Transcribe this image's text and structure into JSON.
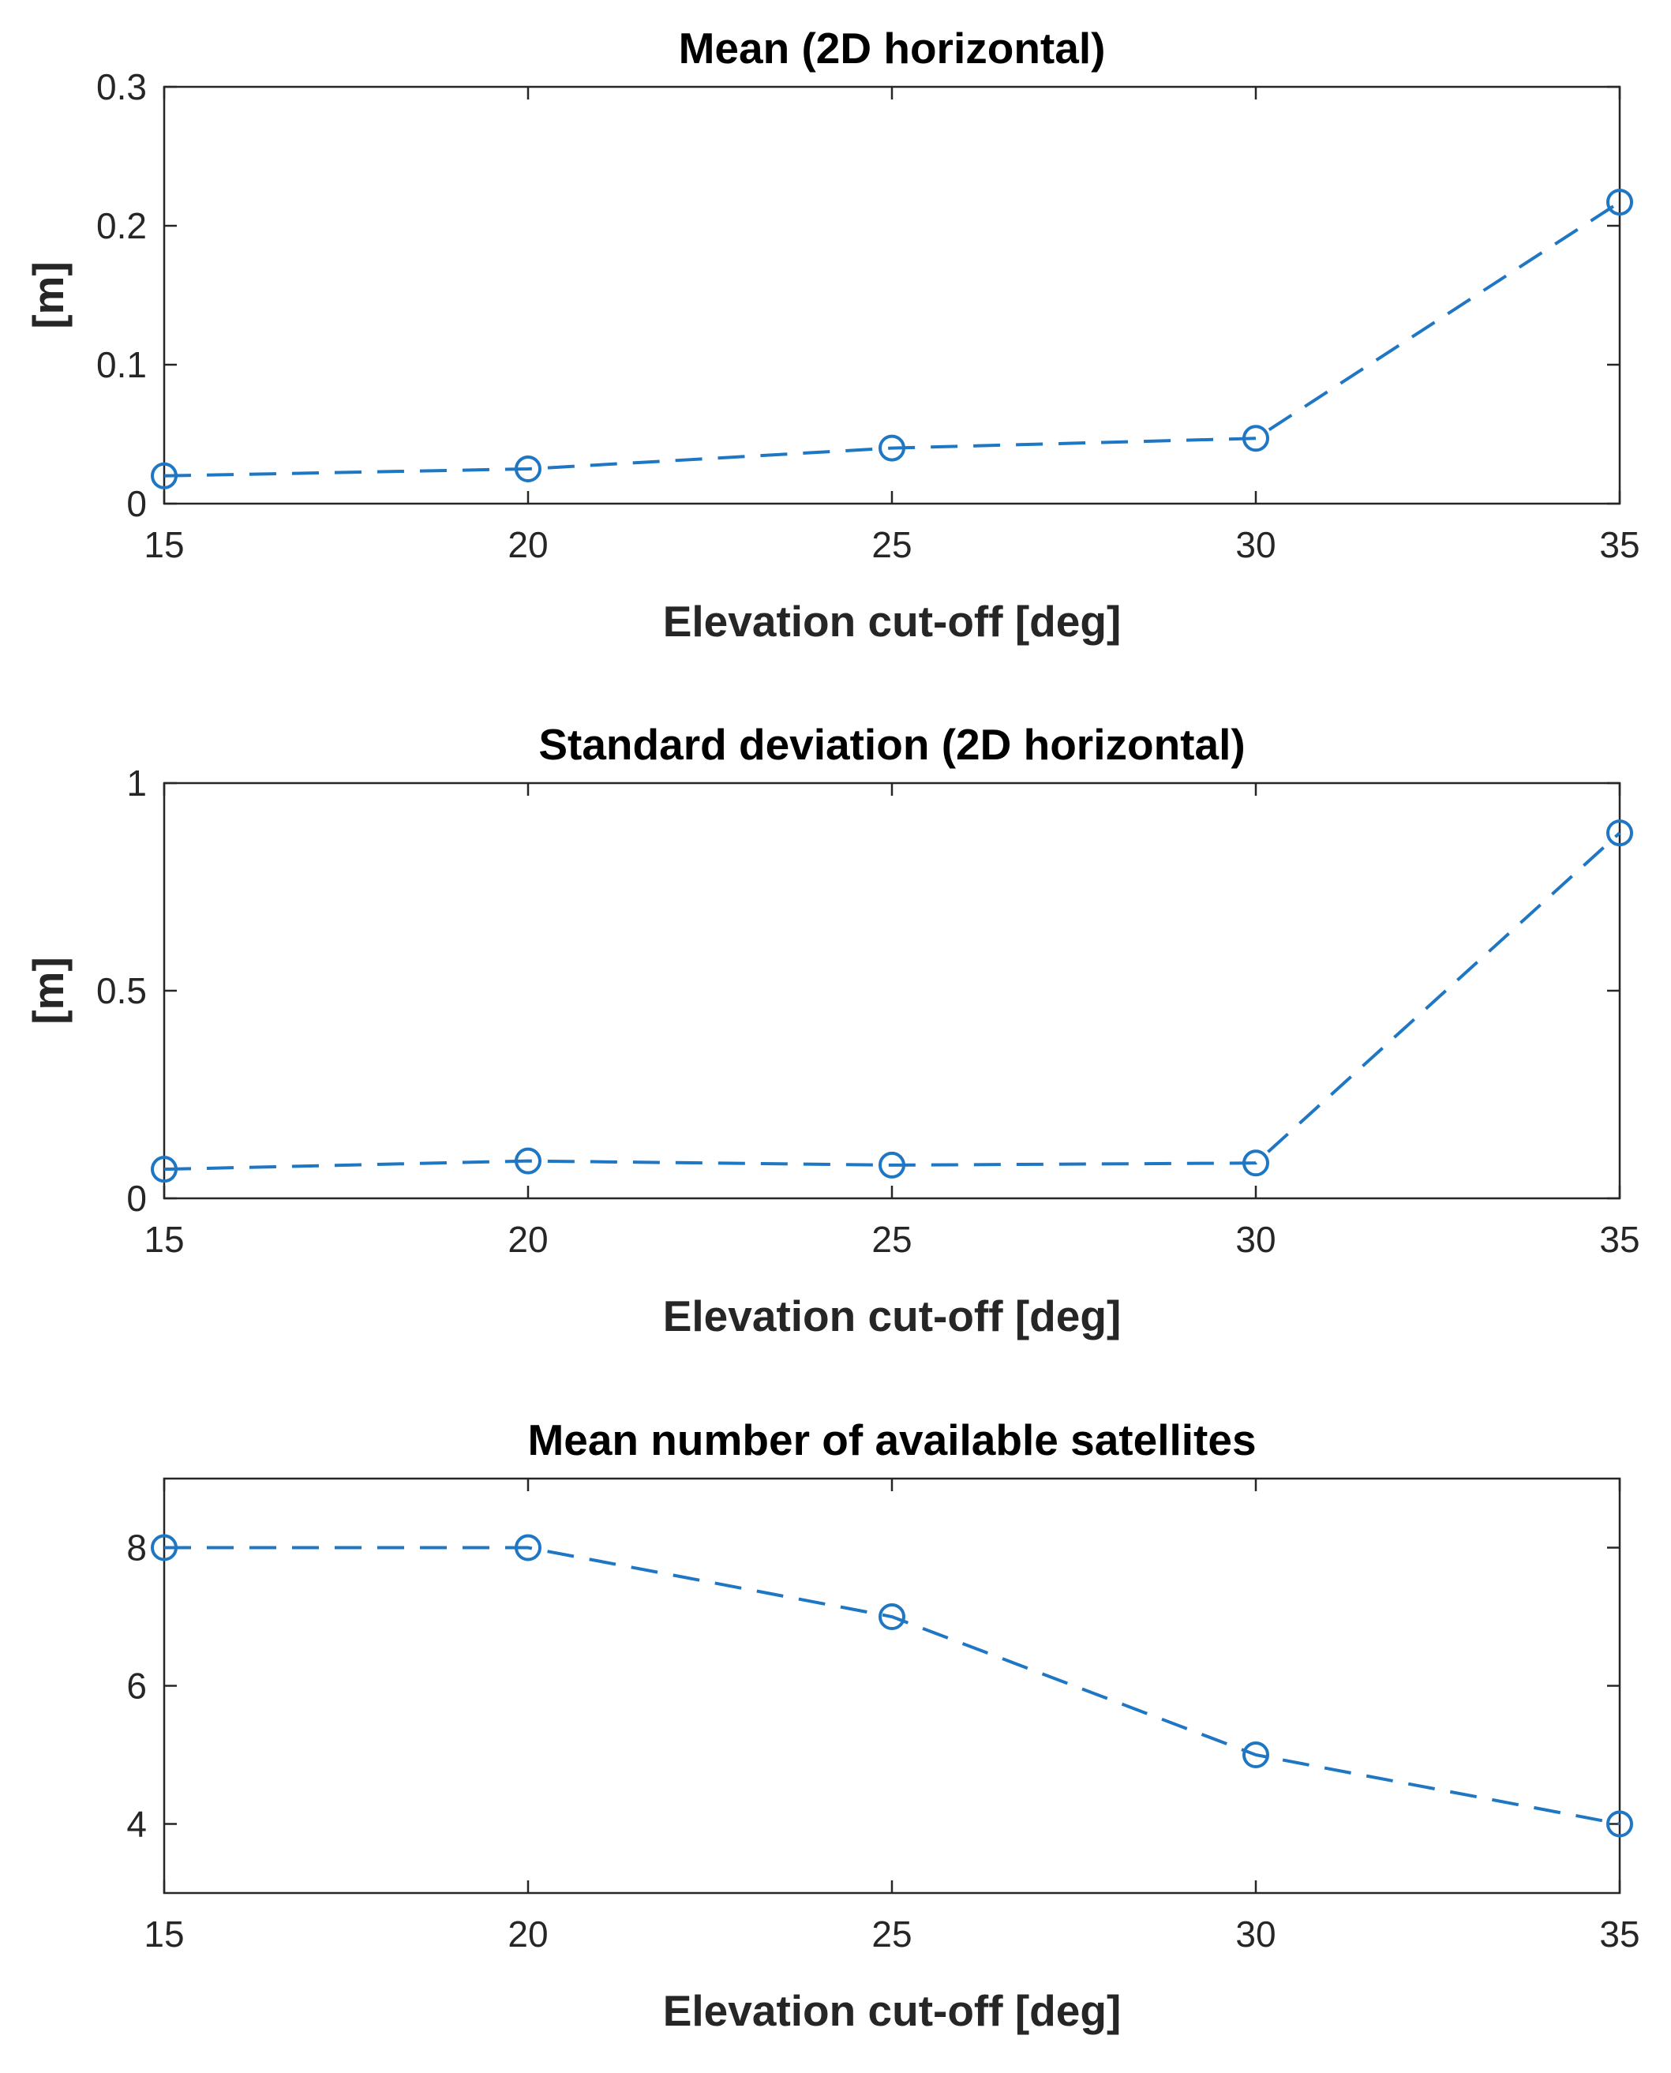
{
  "colors": {
    "series": "#1f77c4",
    "axes": "#262626",
    "grid": "#d4d4d4"
  },
  "chart_data": [
    {
      "type": "line",
      "title": "Mean (2D horizontal)",
      "xlabel": "Elevation cut-off [deg]",
      "ylabel": "[m]",
      "x": [
        15,
        20,
        25,
        30,
        35
      ],
      "series": [
        {
          "name": "Mean (2D horizontal)",
          "values": [
            0.02,
            0.025,
            0.04,
            0.047,
            0.217
          ],
          "line_style": "dashed",
          "marker": "circle"
        }
      ],
      "xlim": [
        15,
        35
      ],
      "ylim": [
        0,
        0.3
      ],
      "xticks": [
        15,
        20,
        25,
        30,
        35
      ],
      "xtick_labels": [
        "15",
        "20",
        "25",
        "30",
        "35"
      ],
      "yticks": [
        0,
        0.1,
        0.2,
        0.3
      ],
      "ytick_labels": [
        "0",
        "0.1",
        "0.2",
        "0.3"
      ],
      "grid": true
    },
    {
      "type": "line",
      "title": "Standard deviation (2D horizontal)",
      "xlabel": "Elevation cut-off [deg]",
      "ylabel": "[m]",
      "x": [
        15,
        20,
        25,
        30,
        35
      ],
      "series": [
        {
          "name": "Standard deviation (2D horizontal)",
          "values": [
            0.07,
            0.09,
            0.08,
            0.085,
            0.88
          ],
          "line_style": "dashed",
          "marker": "circle"
        }
      ],
      "xlim": [
        15,
        35
      ],
      "ylim": [
        0,
        1
      ],
      "xticks": [
        15,
        20,
        25,
        30,
        35
      ],
      "xtick_labels": [
        "15",
        "20",
        "25",
        "30",
        "35"
      ],
      "yticks": [
        0,
        0.5,
        1
      ],
      "ytick_labels": [
        "0",
        "0.5",
        "1"
      ],
      "grid": true
    },
    {
      "type": "line",
      "title": "Mean number of available satellites",
      "xlabel": "Elevation cut-off [deg]",
      "ylabel": "",
      "x": [
        15,
        20,
        25,
        30,
        35
      ],
      "series": [
        {
          "name": "Mean number of available satellites",
          "values": [
            8,
            8,
            7,
            5,
            4
          ],
          "line_style": "dashed",
          "marker": "circle"
        }
      ],
      "xlim": [
        15,
        35
      ],
      "ylim": [
        3,
        9
      ],
      "xticks": [
        15,
        20,
        25,
        30,
        35
      ],
      "xtick_labels": [
        "15",
        "20",
        "25",
        "30",
        "35"
      ],
      "yticks": [
        4,
        6,
        8
      ],
      "ytick_labels": [
        "4",
        "6",
        "8"
      ],
      "grid": true
    }
  ]
}
